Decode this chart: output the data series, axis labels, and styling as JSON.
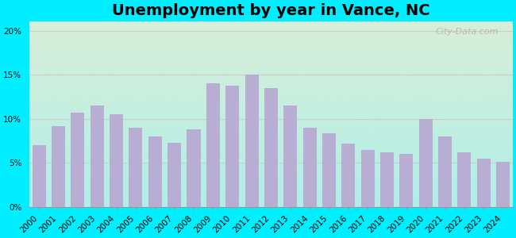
{
  "title": "Unemployment by year in Vance, NC",
  "years": [
    2000,
    2001,
    2002,
    2003,
    2004,
    2005,
    2006,
    2007,
    2008,
    2009,
    2010,
    2011,
    2012,
    2013,
    2014,
    2015,
    2016,
    2017,
    2018,
    2019,
    2020,
    2021,
    2022,
    2023,
    2024
  ],
  "values": [
    7.0,
    9.2,
    10.7,
    11.5,
    10.5,
    9.0,
    8.0,
    7.3,
    8.8,
    14.0,
    13.8,
    15.0,
    13.5,
    11.5,
    9.0,
    8.4,
    7.2,
    6.5,
    6.2,
    6.0,
    10.0,
    8.0,
    6.2,
    5.5,
    5.1
  ],
  "bar_color": "#b8aed4",
  "bg_outer": "#00eeff",
  "yticks": [
    0,
    5,
    10,
    15,
    20
  ],
  "ylim": [
    0,
    21
  ],
  "title_fontsize": 14,
  "tick_fontsize": 7.5,
  "watermark": "City-Data.com",
  "grid_color": "#cccccc",
  "grad_top": "#d8eed8",
  "grad_bottom": "#b0eee8"
}
